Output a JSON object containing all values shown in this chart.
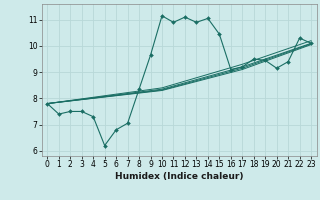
{
  "xlabel": "Humidex (Indice chaleur)",
  "bg_color": "#ceeaea",
  "grid_color": "#b8d8d8",
  "line_color": "#1a6e64",
  "xlim": [
    -0.5,
    23.5
  ],
  "ylim": [
    5.8,
    11.6
  ],
  "yticks": [
    6,
    7,
    8,
    9,
    10,
    11
  ],
  "xticks": [
    0,
    1,
    2,
    3,
    4,
    5,
    6,
    7,
    8,
    9,
    10,
    11,
    12,
    13,
    14,
    15,
    16,
    17,
    18,
    19,
    20,
    21,
    22,
    23
  ],
  "main_series": {
    "x": [
      0,
      1,
      2,
      3,
      4,
      5,
      6,
      7,
      8,
      9,
      10,
      11,
      12,
      13,
      14,
      15,
      16,
      17,
      18,
      19,
      20,
      21,
      22,
      23
    ],
    "y": [
      7.8,
      7.4,
      7.5,
      7.5,
      7.3,
      6.2,
      6.8,
      7.05,
      8.35,
      9.65,
      11.15,
      10.9,
      11.1,
      10.9,
      11.05,
      10.45,
      9.1,
      9.2,
      9.5,
      9.45,
      9.15,
      9.4,
      10.3,
      10.1
    ]
  },
  "trend_lines": [
    {
      "x": [
        0,
        10,
        17,
        23
      ],
      "y": [
        7.8,
        8.35,
        9.2,
        10.1
      ]
    },
    {
      "x": [
        0,
        10,
        17,
        23
      ],
      "y": [
        7.8,
        8.4,
        9.3,
        10.2
      ]
    },
    {
      "x": [
        0,
        10,
        17,
        23
      ],
      "y": [
        7.8,
        8.3,
        9.1,
        10.05
      ]
    },
    {
      "x": [
        0,
        10,
        17,
        23
      ],
      "y": [
        7.8,
        8.32,
        9.15,
        10.08
      ]
    }
  ]
}
